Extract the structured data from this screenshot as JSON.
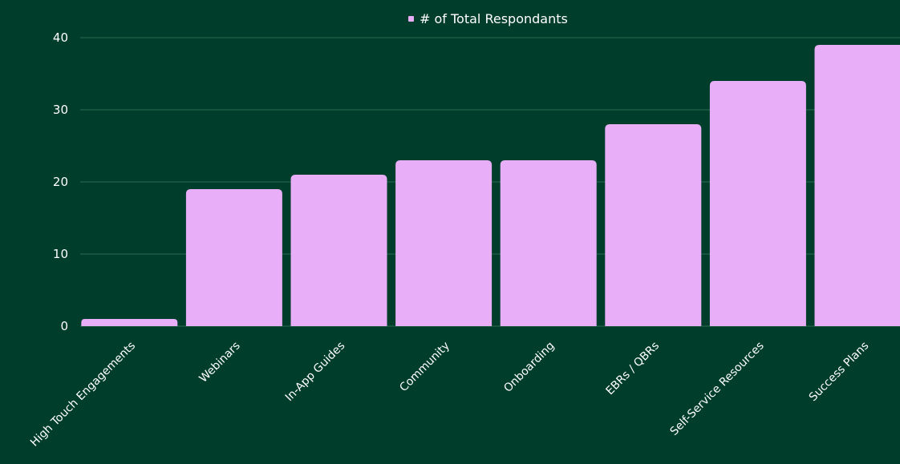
{
  "colors": {
    "background": "#003d2b",
    "bar": "#e8aef7",
    "gridline": "#2b6a52",
    "text": "#ffffff"
  },
  "chart_data": {
    "type": "bar",
    "categories": [
      "High Touch Engagements",
      "Webinars",
      "In-App Guides",
      "Community",
      "Onboarding",
      "EBRs / QBRs",
      "Self-Service Resources",
      "Success Plans"
    ],
    "series": [
      {
        "name": "# of Total Respondants",
        "values": [
          1,
          19,
          21,
          23,
          23,
          28,
          34,
          39
        ]
      }
    ],
    "yticks": [
      0,
      10,
      20,
      30,
      40
    ],
    "ylim": [
      0,
      40
    ],
    "grid": true,
    "legend_position": "top-center",
    "title": "",
    "xlabel": "",
    "ylabel": ""
  }
}
